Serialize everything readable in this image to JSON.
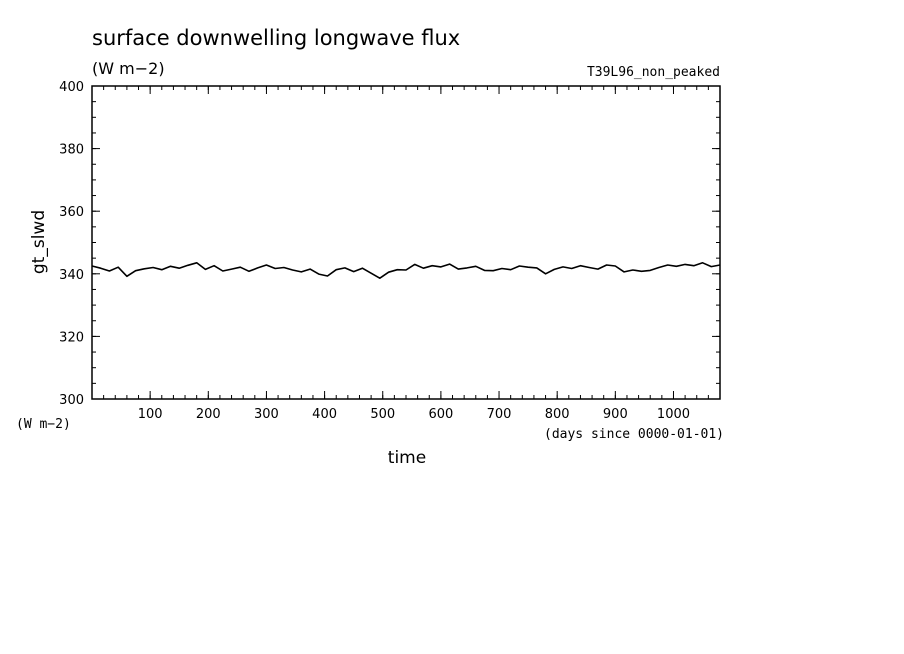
{
  "chart_data": {
    "type": "line",
    "title": "surface downwelling longwave flux",
    "units": "(W m−2)",
    "experiment": "T39L96_non_peaked",
    "xlabel": "time",
    "xunits": "(days since 0000-01-01)",
    "ylabel": "gt_slwd",
    "yunits": "(W m−2)",
    "xlim": [
      0,
      1080
    ],
    "ylim": [
      300,
      400
    ],
    "xticks": [
      100,
      200,
      300,
      400,
      500,
      600,
      700,
      800,
      900,
      1000
    ],
    "yticks": [
      300,
      320,
      340,
      360,
      380,
      400
    ],
    "grid": false,
    "series": [
      {
        "line_color": "#000000",
        "x": [
          0,
          15,
          30,
          45,
          60,
          75,
          90,
          105,
          120,
          135,
          150,
          165,
          180,
          195,
          210,
          225,
          240,
          255,
          270,
          285,
          300,
          315,
          330,
          345,
          360,
          375,
          390,
          405,
          420,
          435,
          450,
          465,
          480,
          495,
          510,
          525,
          540,
          555,
          570,
          585,
          600,
          615,
          630,
          645,
          660,
          675,
          690,
          705,
          720,
          735,
          750,
          765,
          780,
          795,
          810,
          825,
          840,
          855,
          870,
          885,
          900,
          915,
          930,
          945,
          960,
          975,
          990,
          1005,
          1020,
          1035,
          1050,
          1065,
          1080
        ],
        "y": [
          342.5,
          341.8,
          340.9,
          342.1,
          339.2,
          341.0,
          341.6,
          342.0,
          341.3,
          342.4,
          341.8,
          342.7,
          343.5,
          341.4,
          342.6,
          340.9,
          341.5,
          342.1,
          340.8,
          341.9,
          342.8,
          341.7,
          342.0,
          341.2,
          340.6,
          341.5,
          339.9,
          339.3,
          341.3,
          341.9,
          340.7,
          341.8,
          340.2,
          338.6,
          340.5,
          341.3,
          341.2,
          343.0,
          341.8,
          342.6,
          342.2,
          343.1,
          341.5,
          341.9,
          342.4,
          341.1,
          341.0,
          341.7,
          341.3,
          342.5,
          342.1,
          341.9,
          340.0,
          341.4,
          342.2,
          341.7,
          342.6,
          342.0,
          341.5,
          342.8,
          342.5,
          340.6,
          341.2,
          340.8,
          341.1,
          342.0,
          342.8,
          342.4,
          343.0,
          342.6,
          343.5,
          342.3,
          342.8
        ]
      }
    ]
  }
}
